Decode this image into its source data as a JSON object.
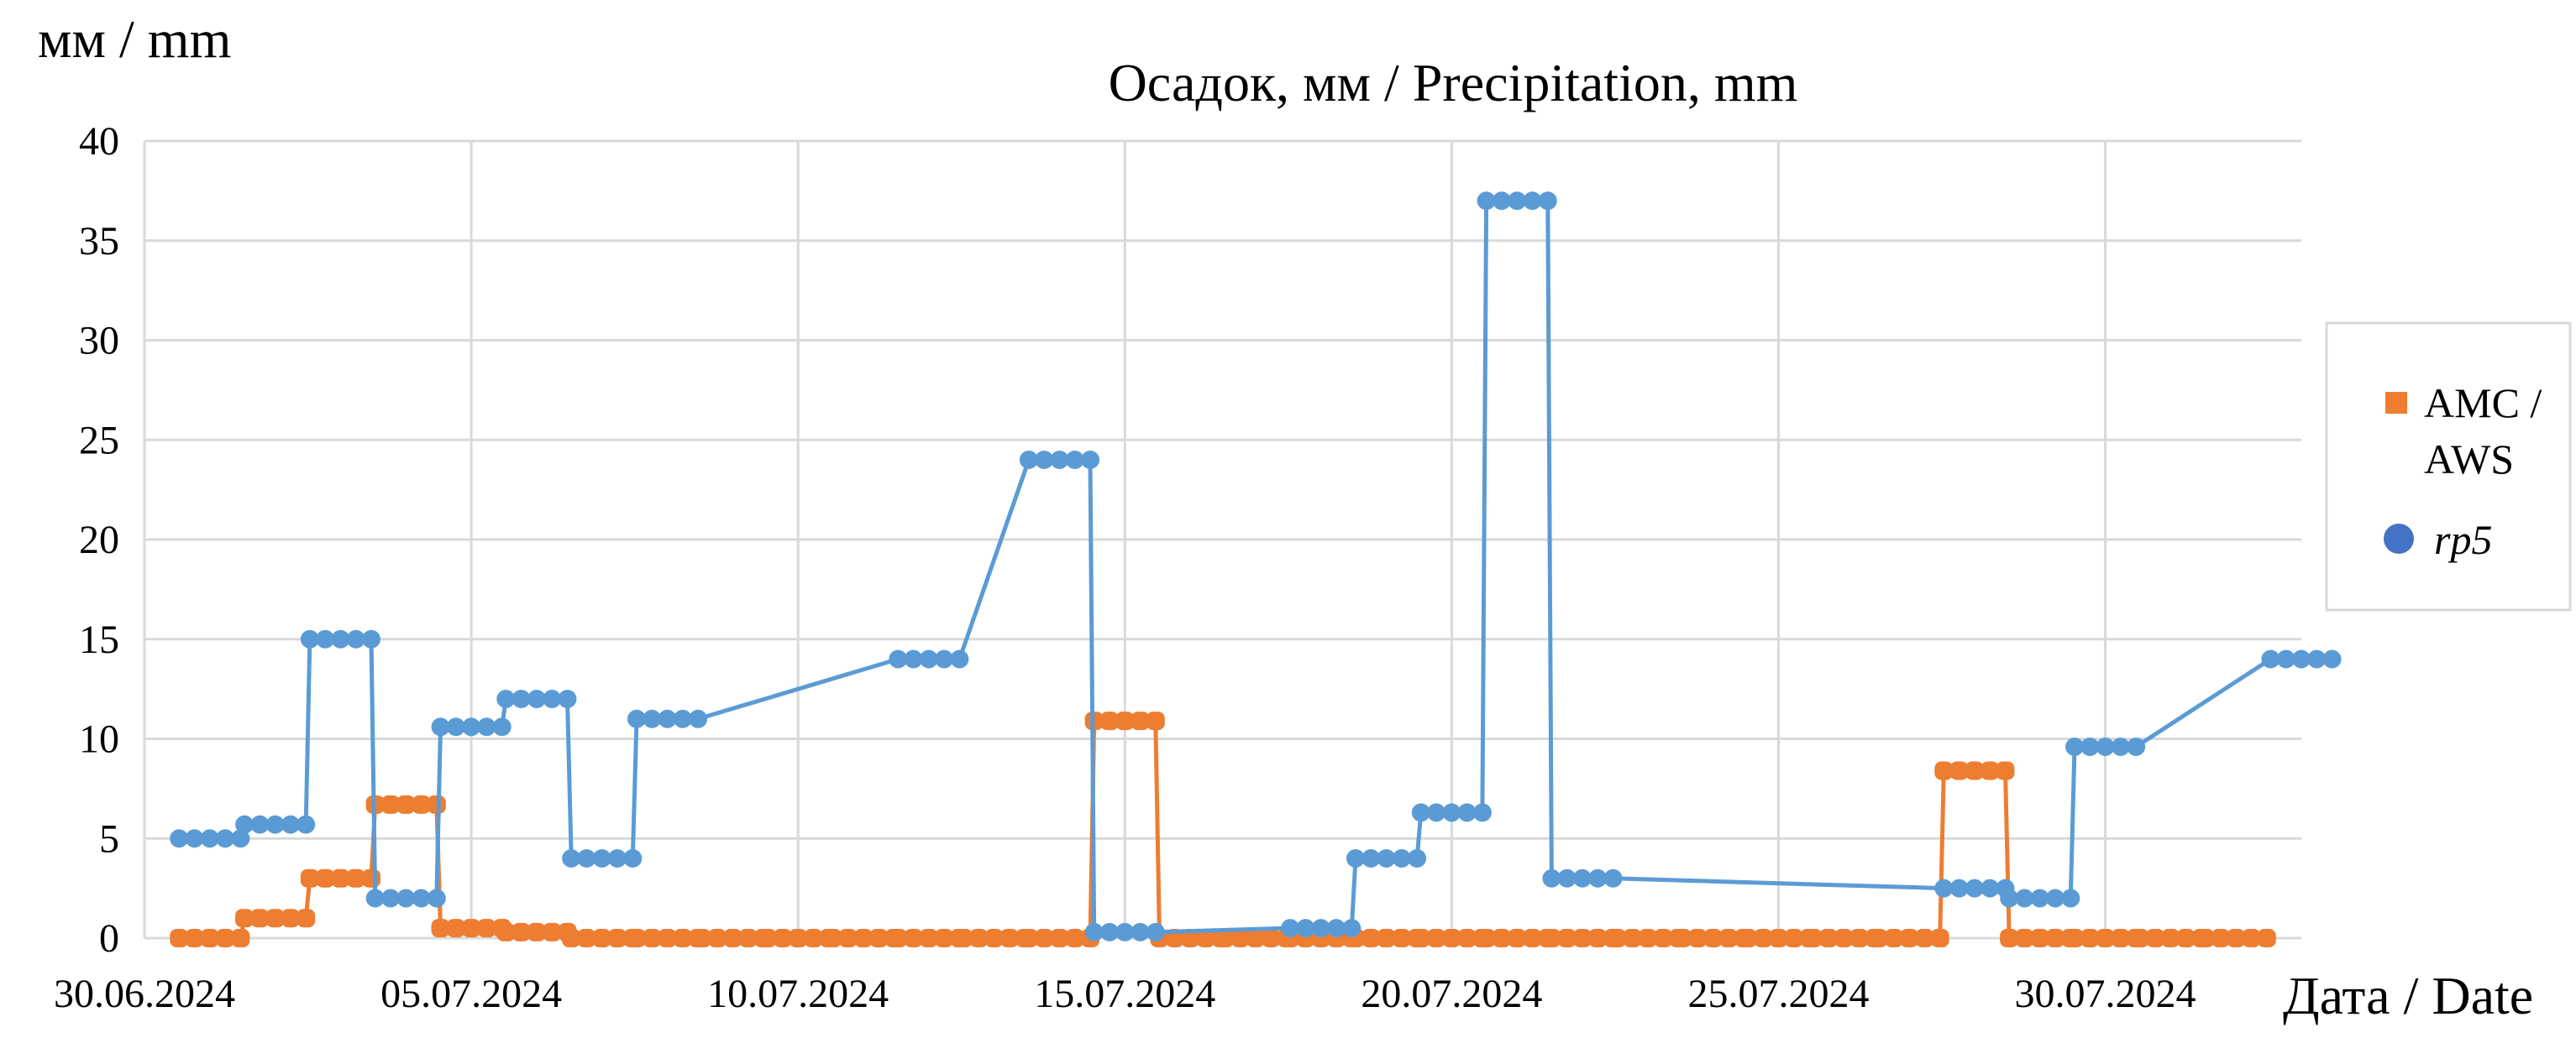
{
  "chart_data": {
    "type": "line",
    "title": "Осадок, мм / Precipitation, mm",
    "ylabel": "мм / mm",
    "xlabel": "Дата / Date",
    "ylim": [
      0,
      40
    ],
    "yticks": [
      0,
      5,
      10,
      15,
      20,
      25,
      30,
      35,
      40
    ],
    "xlim": [
      "30.06.2024",
      "02.08.2024"
    ],
    "xticks": [
      "30.06.2024",
      "05.07.2024",
      "10.07.2024",
      "15.07.2024",
      "20.07.2024",
      "25.07.2024",
      "30.07.2024"
    ],
    "grid": true,
    "legend_position": "right",
    "series": [
      {
        "name": "АМС / AWS",
        "color": "#ed7d31",
        "marker": "square",
        "points": [
          [
            "01.07.2024",
            0
          ],
          [
            "02.07.2024",
            1
          ],
          [
            "03.07.2024",
            3
          ],
          [
            "04.07.2024",
            6.7
          ],
          [
            "05.07.2024",
            0.5
          ],
          [
            "06.07.2024",
            0.3
          ],
          [
            "07.07.2024",
            0
          ],
          [
            "08.07.2024",
            0
          ],
          [
            "09.07.2024",
            0
          ],
          [
            "10.07.2024",
            0
          ],
          [
            "11.07.2024",
            0
          ],
          [
            "12.07.2024",
            0
          ],
          [
            "13.07.2024",
            0
          ],
          [
            "14.07.2024",
            0
          ],
          [
            "15.07.2024",
            10.9
          ],
          [
            "16.07.2024",
            0
          ],
          [
            "17.07.2024",
            0
          ],
          [
            "18.07.2024",
            0
          ],
          [
            "19.07.2024",
            0
          ],
          [
            "20.07.2024",
            0
          ],
          [
            "21.07.2024",
            0
          ],
          [
            "22.07.2024",
            0
          ],
          [
            "23.07.2024",
            0
          ],
          [
            "24.07.2024",
            0
          ],
          [
            "25.07.2024",
            0
          ],
          [
            "26.07.2024",
            0
          ],
          [
            "27.07.2024",
            0
          ],
          [
            "28.07.2024",
            8.4
          ],
          [
            "29.07.2024",
            0
          ],
          [
            "30.07.2024",
            0
          ],
          [
            "31.07.2024",
            0
          ],
          [
            "01.08.2024",
            0
          ]
        ]
      },
      {
        "name": "rp5",
        "color": "#5b9bd5",
        "marker": "circle",
        "points": [
          [
            "01.07.2024",
            5
          ],
          [
            "02.07.2024",
            5.7
          ],
          [
            "03.07.2024",
            15
          ],
          [
            "04.07.2024",
            2
          ],
          [
            "05.07.2024",
            10.6
          ],
          [
            "06.07.2024",
            12
          ],
          [
            "07.07.2024",
            4
          ],
          [
            "08.07.2024",
            11
          ],
          [
            "12.07.2024",
            14
          ],
          [
            "14.07.2024",
            24
          ],
          [
            "15.07.2024",
            0.3
          ],
          [
            "18.07.2024",
            0.5
          ],
          [
            "19.07.2024",
            4
          ],
          [
            "20.07.2024",
            6.3
          ],
          [
            "21.07.2024",
            37
          ],
          [
            "22.07.2024",
            3
          ],
          [
            "28.07.2024",
            2.5
          ],
          [
            "29.07.2024",
            2
          ],
          [
            "30.07.2024",
            9.6
          ],
          [
            "02.08.2024",
            14
          ]
        ]
      }
    ]
  }
}
